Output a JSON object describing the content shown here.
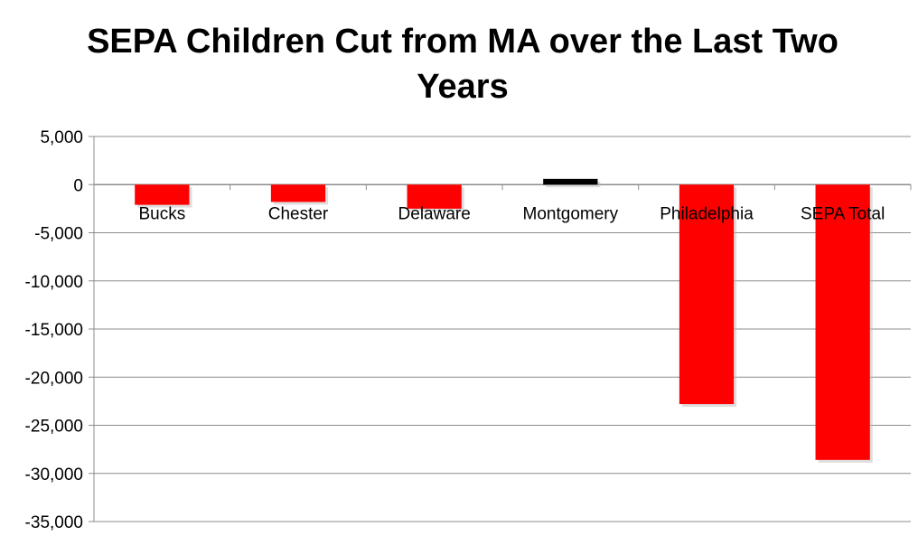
{
  "chart_data": {
    "type": "bar",
    "title": "SEPA Children Cut from MA over the Last Two Years",
    "title_lines": [
      "SEPA Children Cut from MA over the Last Two",
      "Years"
    ],
    "categories": [
      "Bucks",
      "Chester",
      "Delaware",
      "Montgomery",
      "Philadelphia",
      "SEPA Total"
    ],
    "values": [
      -2100,
      -1800,
      -2500,
      600,
      -22800,
      -28600
    ],
    "bar_colors": [
      "#ff0000",
      "#ff0000",
      "#ff0000",
      "#000000",
      "#ff0000",
      "#ff0000"
    ],
    "xlabel": "",
    "ylabel": "",
    "ylim": [
      -35000,
      5000
    ],
    "yticks": [
      5000,
      0,
      -5000,
      -10000,
      -15000,
      -20000,
      -25000,
      -30000,
      -35000
    ],
    "ytick_labels": [
      "5,000",
      "0",
      "-5,000",
      "-10,000",
      "-15,000",
      "-20,000",
      "-25,000",
      "-30,000",
      "-35,000"
    ],
    "grid": true,
    "legend": "none"
  }
}
